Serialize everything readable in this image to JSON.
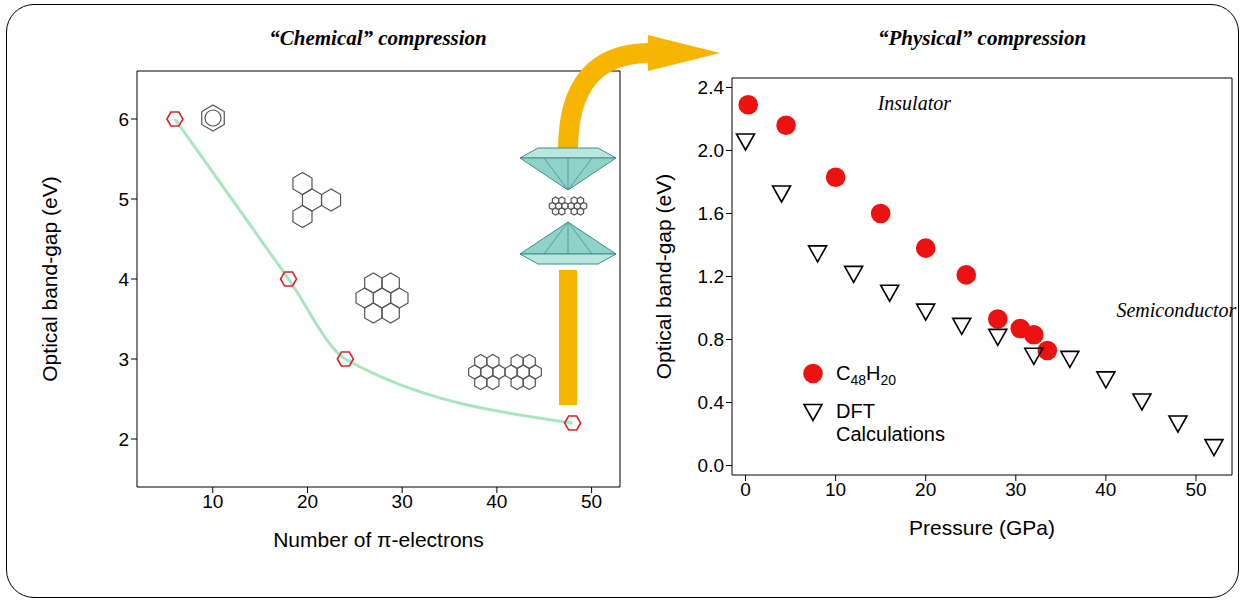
{
  "chart_data": [
    {
      "type": "line",
      "title": "“Chemical” compression",
      "x_label": "Number of π-electrons",
      "y_label": "Optical band-gap (eV)",
      "x": [
        6,
        18,
        24,
        48
      ],
      "series": [
        {
          "type": "line",
          "color": "#a8e6bd",
          "values": [
            6,
            4,
            3,
            2.2
          ]
        },
        {
          "type": "scatter",
          "color": "#d62728",
          "marker": "open-hexagon",
          "values": [
            6,
            4,
            3,
            2.2
          ]
        }
      ],
      "xlim": [
        2,
        53
      ],
      "ylim": [
        1.4,
        6.6
      ],
      "xticks": [
        10,
        20,
        30,
        40,
        50
      ],
      "yticks": [
        2,
        3,
        4,
        5,
        6
      ]
    },
    {
      "type": "scatter",
      "title": "“Physical” compression",
      "x_label": "Pressure (GPa)",
      "y_label": "Optical band-gap (eV)",
      "series": [
        {
          "name": "C48H20",
          "color": "#ee1111",
          "marker": "circle",
          "x": [
            0.3,
            4.5,
            10,
            15,
            20,
            24.5,
            28,
            30.5,
            32,
            33.5
          ],
          "values": [
            2.29,
            2.16,
            1.83,
            1.6,
            1.38,
            1.21,
            0.93,
            0.87,
            0.83,
            0.73
          ]
        },
        {
          "name": "DFT Calculations",
          "color": "#000000",
          "marker": "open-triangle-down",
          "x": [
            0,
            4,
            8,
            12,
            16,
            20,
            24,
            28,
            32,
            36,
            40,
            44,
            48,
            52
          ],
          "values": [
            2.06,
            1.73,
            1.35,
            1.22,
            1.1,
            0.98,
            0.89,
            0.82,
            0.7,
            0.68,
            0.55,
            0.41,
            0.27,
            0.12
          ]
        }
      ],
      "xlim": [
        -1.5,
        54
      ],
      "ylim": [
        -0.06,
        2.46
      ],
      "xticks": [
        0,
        10,
        20,
        30,
        40,
        50
      ],
      "yticks": [
        {
          "value": 0,
          "label": "0.0"
        },
        0.4,
        0.8,
        1.2,
        1.6,
        {
          "value": 2,
          "label": "2.0"
        },
        2.4
      ],
      "legend": "lower left",
      "annotations": [
        {
          "text": "Insulator",
          "x": 14,
          "y": 2.3
        },
        {
          "text": "Semiconductor",
          "x": 40.5,
          "y": 0.99
        }
      ]
    }
  ]
}
